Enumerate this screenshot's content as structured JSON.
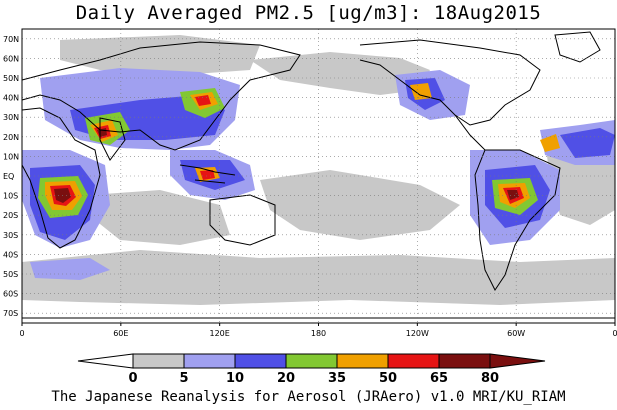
{
  "title": "Daily Averaged PM2.5 [ug/m3]: 18Aug2015",
  "credit": "The Japanese Reanalysis for Aerosol (JRAero) v1.0 MRI/KU_RIAM",
  "lat_labels": [
    "70N",
    "60N",
    "50N",
    "40N",
    "30N",
    "20N",
    "10N",
    "EQ",
    "10S",
    "20S",
    "30S",
    "40S",
    "50S",
    "60S",
    "70S"
  ],
  "lon_labels": [
    "0",
    "60E",
    "120E",
    "180",
    "120W",
    "60W",
    "0"
  ],
  "colorbar": {
    "bins": [
      {
        "label": "0",
        "color": "#ffffff"
      },
      {
        "label": "5",
        "color": "#c8c8c8"
      },
      {
        "label": "10",
        "color": "#a0a0f0"
      },
      {
        "label": "20",
        "color": "#5050e6"
      },
      {
        "label": "35",
        "color": "#82c832"
      },
      {
        "label": "50",
        "color": "#f0a000"
      },
      {
        "label": "65",
        "color": "#e61414"
      },
      {
        "label": "80",
        "color": "#7a0f0f"
      }
    ],
    "under_color": "#ffffff",
    "over_color": "#7a0f0f"
  },
  "map": {
    "lon_range": [
      0,
      360
    ],
    "lat_range": [
      -75,
      75
    ],
    "gridlines": "dotted",
    "coastline_color": "#000000"
  }
}
